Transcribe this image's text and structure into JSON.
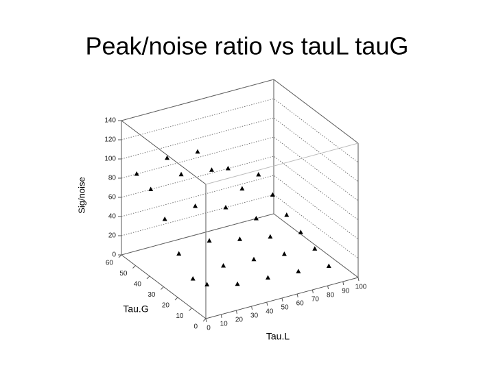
{
  "chart_data": {
    "type": "scatter3d",
    "title": "Peak/noise ratio vs tauL tauG",
    "x_label": "Tau.L",
    "y_label": "Tau.G",
    "z_label": "Sig/noise",
    "xlim": [
      0,
      100
    ],
    "xticks": [
      0,
      10,
      20,
      30,
      40,
      50,
      60,
      70,
      80,
      90,
      100
    ],
    "ylim": [
      0,
      60
    ],
    "yticks": [
      0,
      10,
      20,
      30,
      40,
      50,
      60
    ],
    "zlim": [
      0,
      140
    ],
    "zticks": [
      0,
      20,
      40,
      60,
      80,
      100,
      120,
      140
    ],
    "color": "#000000",
    "marker": "triangle",
    "grid": true,
    "x": [
      10,
      30,
      50,
      70,
      90,
      10,
      30,
      50,
      70,
      90,
      10,
      30,
      50,
      70,
      90,
      10,
      30,
      50,
      70,
      90,
      10,
      30,
      50,
      70,
      90,
      10,
      30,
      50,
      70,
      90
    ],
    "y": [
      60,
      60,
      60,
      60,
      60,
      50,
      50,
      50,
      50,
      50,
      40,
      40,
      40,
      40,
      40,
      30,
      30,
      30,
      30,
      30,
      20,
      20,
      20,
      20,
      20,
      10,
      10,
      10,
      10,
      10
    ],
    "z": [
      80,
      88,
      86,
      60,
      45,
      75,
      82,
      78,
      50,
      35,
      55,
      60,
      50,
      30,
      25,
      30,
      35,
      28,
      22,
      18,
      15,
      20,
      18,
      15,
      12,
      20,
      12,
      10,
      8,
      5
    ]
  }
}
